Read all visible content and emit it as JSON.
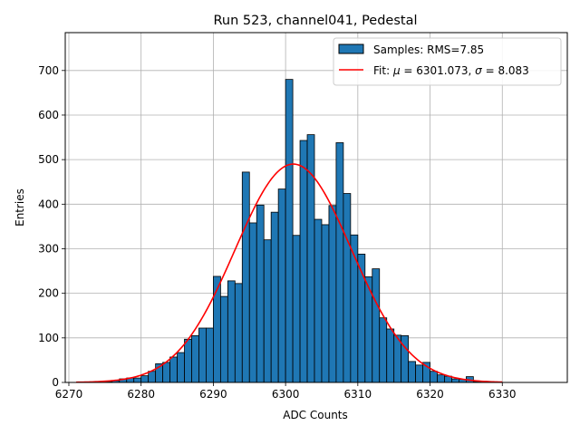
{
  "chart_data": {
    "type": "bar",
    "title": "Run 523, channel041, Pedestal",
    "xlabel": "ADC Counts",
    "ylabel": "Entries",
    "xlim": [
      6269.5,
      6339
    ],
    "ylim": [
      0,
      785
    ],
    "grid": true,
    "legend_position": "top-right",
    "x_ticks": [
      6270,
      6280,
      6290,
      6300,
      6310,
      6320,
      6330
    ],
    "y_ticks": [
      0,
      100,
      200,
      300,
      400,
      500,
      600,
      700
    ],
    "histogram": {
      "name": "Samples: RMS=7.85",
      "color": "#1f77b4",
      "edge_color": "#000000",
      "bin_start": 6274,
      "bin_width": 1,
      "counts": [
        1,
        2,
        4,
        8,
        10,
        10,
        15,
        25,
        42,
        45,
        57,
        67,
        97,
        105,
        122,
        122,
        238,
        193,
        228,
        222,
        472,
        358,
        398,
        320,
        382,
        434,
        680,
        330,
        543,
        556,
        366,
        354,
        397,
        538,
        424,
        331,
        288,
        237,
        255,
        145,
        120,
        106,
        105,
        47,
        39,
        45,
        25,
        17,
        14,
        8,
        7,
        13,
        2,
        1
      ]
    },
    "fit": {
      "name": "Fit: μ = 6301.073, σ = 8.083",
      "name_parts": [
        "Fit: ",
        "μ",
        " = 6301.073, ",
        "σ",
        " = 8.083"
      ],
      "color": "#ff0000",
      "mu": 6301.073,
      "sigma": 8.083,
      "amplitude": 490,
      "x_range": [
        6271,
        6330
      ]
    }
  }
}
